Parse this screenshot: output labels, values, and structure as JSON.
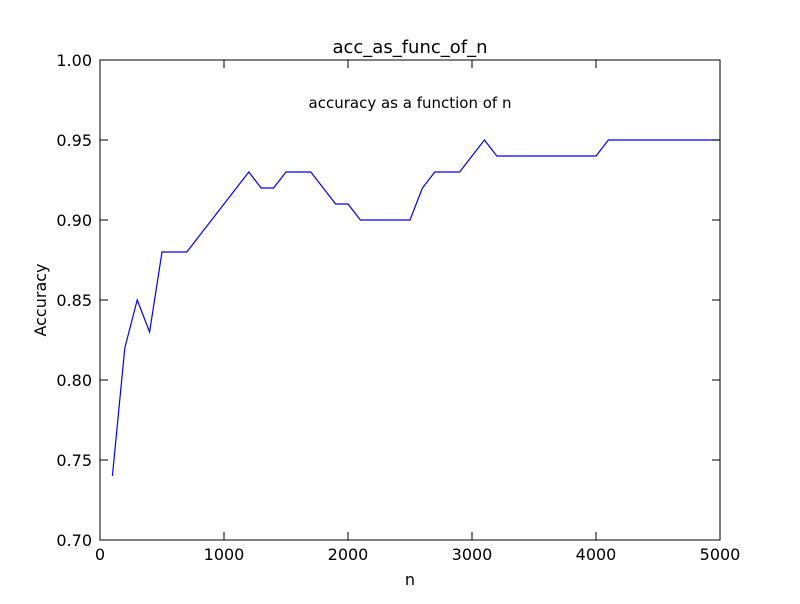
{
  "chart_data": {
    "type": "line",
    "title": "acc_as_func_of_n",
    "annotation": "accuracy as a function of n",
    "xlabel": "n",
    "ylabel": "Accuracy",
    "xlim": [
      0,
      5000
    ],
    "ylim": [
      0.7,
      1.0
    ],
    "xticks": [
      0,
      1000,
      2000,
      3000,
      4000,
      5000
    ],
    "xtick_labels": [
      "0",
      "1000",
      "2000",
      "3000",
      "4000",
      "5000"
    ],
    "yticks": [
      0.7,
      0.75,
      0.8,
      0.85,
      0.9,
      0.95,
      1.0
    ],
    "ytick_labels": [
      "0.70",
      "0.75",
      "0.80",
      "0.85",
      "0.90",
      "0.95",
      "1.00"
    ],
    "grid": false,
    "legend": "none",
    "series": [
      {
        "color": "#0000ff",
        "x": [
          100,
          200,
          300,
          400,
          500,
          600,
          700,
          800,
          900,
          1000,
          1100,
          1200,
          1300,
          1400,
          1500,
          1600,
          1700,
          1800,
          1900,
          2000,
          2100,
          2200,
          2300,
          2400,
          2500,
          2600,
          2700,
          2800,
          2900,
          3000,
          3100,
          3200,
          3300,
          3400,
          3500,
          3600,
          3700,
          3800,
          3900,
          4000,
          4100,
          4200,
          4300,
          4400,
          4500,
          4600,
          4700,
          4800,
          4900,
          5000
        ],
        "y": [
          0.74,
          0.82,
          0.85,
          0.83,
          0.88,
          0.88,
          0.88,
          0.89,
          0.9,
          0.91,
          0.92,
          0.93,
          0.92,
          0.92,
          0.93,
          0.93,
          0.93,
          0.92,
          0.91,
          0.91,
          0.9,
          0.9,
          0.9,
          0.9,
          0.9,
          0.92,
          0.93,
          0.93,
          0.93,
          0.94,
          0.95,
          0.94,
          0.94,
          0.94,
          0.94,
          0.94,
          0.94,
          0.94,
          0.94,
          0.94,
          0.95,
          0.95,
          0.95,
          0.95,
          0.95,
          0.95,
          0.95,
          0.95,
          0.95,
          0.95
        ]
      }
    ]
  }
}
